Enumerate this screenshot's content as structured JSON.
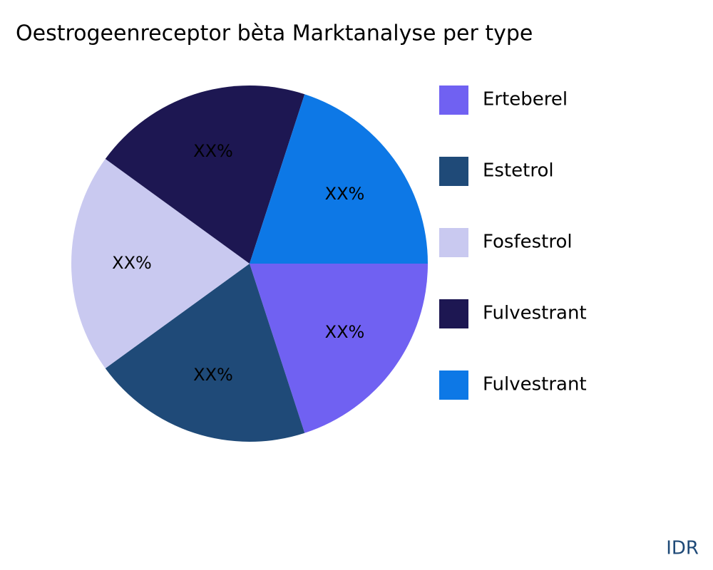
{
  "chart_data": {
    "type": "pie",
    "title": "Oestrogeenreceptor bèta Marktanalyse per type",
    "categories": [
      "Erteberel",
      "Estetrol",
      "Fosfestrol",
      "Fulvestrant",
      "Fulvestrant"
    ],
    "values": [
      20,
      20,
      20,
      20,
      20
    ],
    "value_labels": [
      "XX%",
      "XX%",
      "XX%",
      "XX%",
      "XX%"
    ],
    "colors": [
      "#7061f2",
      "#1f4a78",
      "#c9c9f0",
      "#1d1752",
      "#0d78e6"
    ],
    "legend": "right",
    "brand": "IDR"
  }
}
